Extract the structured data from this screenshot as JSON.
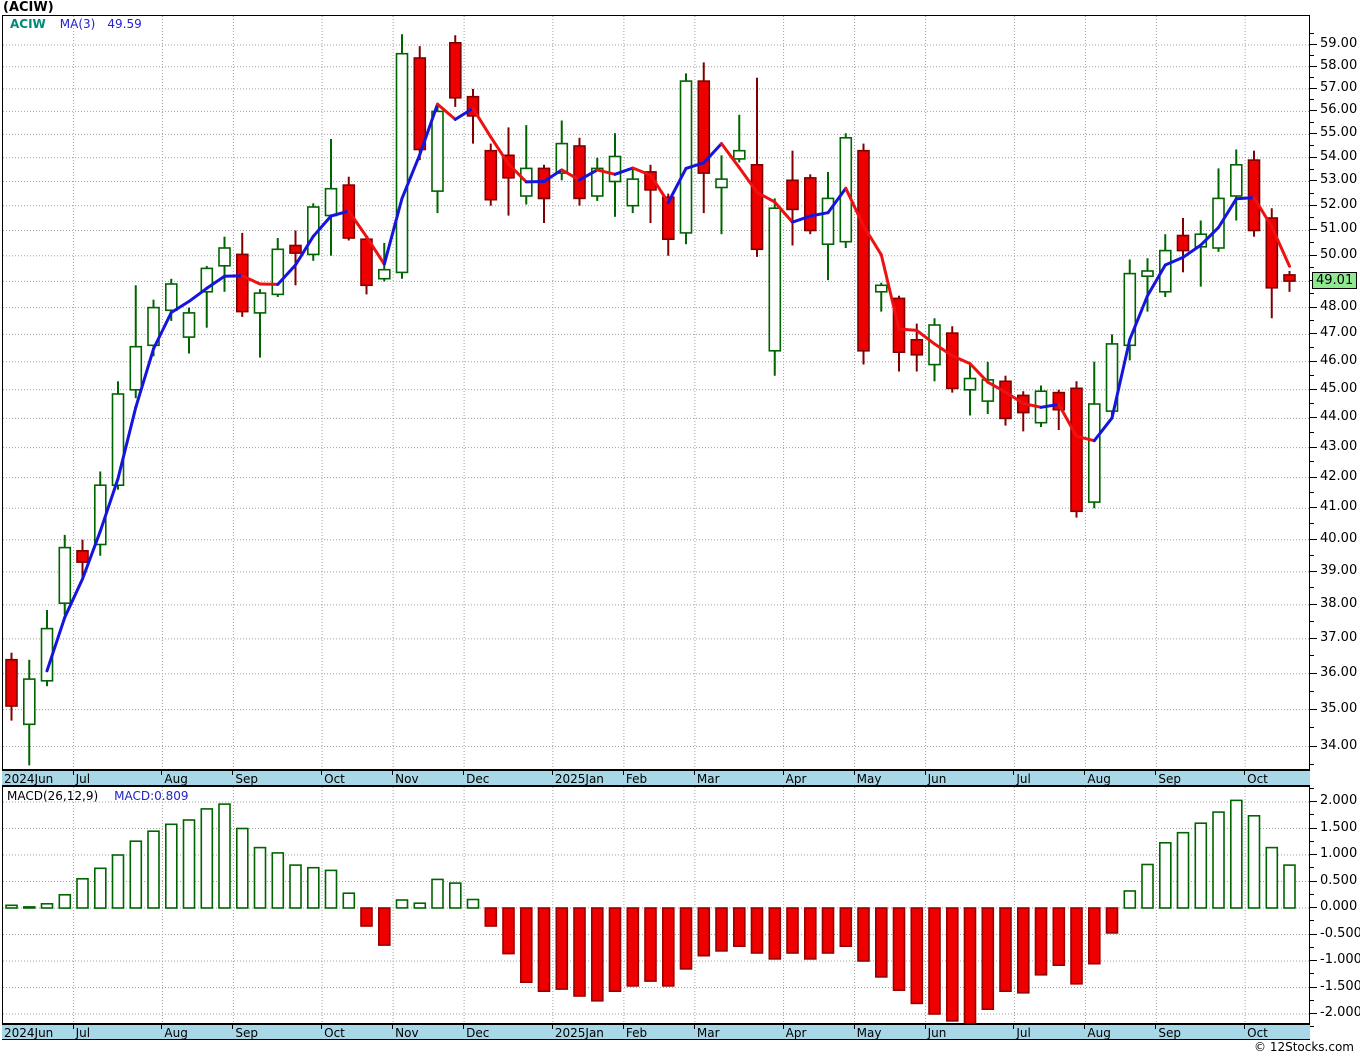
{
  "title": "(ACIW)",
  "copyright": "© 12Stocks.com",
  "price_chart": {
    "legend": {
      "symbol": "ACIW",
      "ma_label": "MA(3)",
      "ma_value": "49.59"
    },
    "last_price_label": "49.01"
  },
  "macd_chart": {
    "label": "MACD(26,12,9)",
    "value_label": "MACD:0.809"
  },
  "colors": {
    "up_fill": "#ffffff",
    "up_border": "#006400",
    "down_fill": "#ee0000",
    "down_border": "#800000",
    "ma_up": "#1515dd",
    "ma_down": "#ee1111",
    "grid": "#a0a0a0",
    "strip_bg": "#a8d8e8",
    "badge_bg": "#90e890",
    "legend_symbol": "#008878",
    "legend_blue": "#2222cc"
  },
  "chart_data": [
    {
      "type": "candlestick",
      "title": "(ACIW)",
      "series_name": "ACIW weekly OHLC",
      "overlay": {
        "name": "MA(3)",
        "last_value": 49.59,
        "rule": "blue when rising, red when falling"
      },
      "y_axis": {
        "min": 34.0,
        "max": 59.0,
        "major_step": 1.0,
        "minor_step": 0.5,
        "scale": "log",
        "side": "right",
        "label_format": "0.00"
      },
      "last_price": 49.01,
      "x_axis_months": [
        {
          "label": "2024Jun",
          "i": 0
        },
        {
          "label": "Jul",
          "i": 4
        },
        {
          "label": "Aug",
          "i": 9
        },
        {
          "label": "Sep",
          "i": 13
        },
        {
          "label": "Oct",
          "i": 18
        },
        {
          "label": "Nov",
          "i": 22
        },
        {
          "label": "Dec",
          "i": 26
        },
        {
          "label": "2025Jan",
          "i": 31
        },
        {
          "label": "Feb",
          "i": 35
        },
        {
          "label": "Mar",
          "i": 39
        },
        {
          "label": "Apr",
          "i": 44
        },
        {
          "label": "May",
          "i": 48
        },
        {
          "label": "Jun",
          "i": 52
        },
        {
          "label": "Jul",
          "i": 57
        },
        {
          "label": "Aug",
          "i": 61
        },
        {
          "label": "Sep",
          "i": 65
        },
        {
          "label": "Oct",
          "i": 70
        }
      ],
      "candles_ohlc": [
        [
          36.4,
          36.6,
          34.7,
          35.1
        ],
        [
          34.6,
          36.4,
          33.5,
          35.85
        ],
        [
          35.8,
          37.85,
          35.65,
          37.3
        ],
        [
          38.05,
          40.15,
          37.7,
          39.75
        ],
        [
          39.65,
          40.0,
          38.8,
          39.3
        ],
        [
          39.85,
          42.2,
          39.5,
          41.75
        ],
        [
          41.75,
          45.3,
          41.6,
          44.85
        ],
        [
          45.0,
          48.85,
          44.7,
          46.55
        ],
        [
          46.6,
          48.3,
          46.2,
          48.0
        ],
        [
          47.9,
          49.1,
          47.5,
          48.9
        ],
        [
          46.9,
          48.0,
          46.3,
          47.8
        ],
        [
          48.6,
          49.6,
          47.25,
          49.5
        ],
        [
          49.6,
          50.75,
          48.6,
          50.3
        ],
        [
          50.05,
          50.9,
          47.65,
          47.85
        ],
        [
          47.8,
          48.7,
          46.15,
          48.55
        ],
        [
          48.5,
          50.7,
          48.4,
          50.25
        ],
        [
          50.4,
          51.0,
          48.85,
          50.1
        ],
        [
          50.05,
          52.1,
          49.8,
          51.95
        ],
        [
          51.6,
          54.8,
          50.0,
          52.7
        ],
        [
          52.85,
          53.2,
          50.6,
          50.7
        ],
        [
          50.65,
          50.8,
          48.5,
          48.85
        ],
        [
          49.1,
          50.5,
          49.0,
          49.45
        ],
        [
          49.35,
          59.5,
          49.1,
          58.6
        ],
        [
          58.4,
          58.95,
          53.9,
          54.35
        ],
        [
          52.6,
          56.3,
          51.7,
          56.0
        ],
        [
          59.1,
          59.45,
          56.2,
          56.6
        ],
        [
          56.65,
          57.0,
          54.6,
          55.8
        ],
        [
          54.3,
          54.6,
          52.0,
          52.25
        ],
        [
          54.1,
          55.3,
          51.6,
          53.15
        ],
        [
          52.4,
          55.4,
          52.05,
          53.55
        ],
        [
          53.55,
          53.7,
          51.3,
          52.3
        ],
        [
          53.35,
          55.6,
          53.05,
          54.6
        ],
        [
          54.5,
          54.85,
          52.0,
          52.3
        ],
        [
          52.4,
          54.0,
          52.2,
          53.55
        ],
        [
          53.0,
          55.05,
          51.55,
          54.05
        ],
        [
          52.0,
          53.55,
          51.7,
          53.1
        ],
        [
          53.4,
          53.7,
          51.3,
          52.65
        ],
        [
          52.35,
          52.5,
          50.0,
          50.65
        ],
        [
          50.9,
          57.7,
          50.45,
          57.35
        ],
        [
          57.35,
          58.2,
          51.7,
          53.35
        ],
        [
          52.75,
          54.1,
          50.85,
          53.1
        ],
        [
          53.95,
          55.85,
          53.8,
          54.3
        ],
        [
          53.7,
          57.5,
          49.95,
          50.25
        ],
        [
          46.4,
          52.3,
          45.5,
          51.9
        ],
        [
          53.05,
          54.3,
          50.4,
          51.85
        ],
        [
          53.15,
          53.3,
          50.85,
          51.0
        ],
        [
          50.45,
          53.4,
          49.05,
          52.3
        ],
        [
          50.55,
          55.05,
          50.3,
          54.85
        ],
        [
          54.3,
          54.6,
          45.9,
          46.4
        ],
        [
          48.6,
          48.95,
          47.85,
          48.85
        ],
        [
          48.35,
          48.45,
          45.65,
          46.35
        ],
        [
          46.8,
          47.4,
          45.65,
          46.25
        ],
        [
          45.9,
          47.6,
          45.3,
          47.35
        ],
        [
          47.05,
          47.3,
          44.9,
          45.05
        ],
        [
          45.0,
          45.9,
          44.1,
          45.4
        ],
        [
          44.6,
          46.0,
          44.15,
          45.35
        ],
        [
          45.3,
          45.5,
          43.75,
          44.0
        ],
        [
          44.8,
          44.95,
          43.55,
          44.2
        ],
        [
          43.85,
          45.15,
          43.7,
          44.95
        ],
        [
          44.9,
          45.0,
          43.6,
          44.3
        ],
        [
          45.05,
          45.3,
          40.7,
          40.9
        ],
        [
          41.2,
          46.0,
          41.0,
          44.5
        ],
        [
          44.25,
          47.0,
          44.0,
          46.65
        ],
        [
          46.6,
          49.85,
          46.05,
          49.3
        ],
        [
          49.2,
          49.9,
          47.85,
          49.4
        ],
        [
          48.6,
          50.85,
          48.4,
          50.2
        ],
        [
          50.8,
          51.5,
          49.35,
          50.2
        ],
        [
          50.35,
          51.4,
          48.8,
          50.85
        ],
        [
          50.3,
          53.55,
          50.15,
          52.3
        ],
        [
          52.4,
          54.35,
          51.4,
          53.7
        ],
        [
          53.9,
          54.3,
          50.75,
          51.0
        ],
        [
          51.5,
          51.9,
          47.6,
          48.75
        ],
        [
          49.25,
          49.4,
          48.6,
          49.01
        ]
      ]
    },
    {
      "type": "bar",
      "title": "MACD(26,12,9) histogram",
      "y_axis": {
        "min": -2.0,
        "max": 2.0,
        "major_step": 0.5,
        "minor_step": 0.25,
        "side": "right",
        "label_format": "0.000"
      },
      "last_value": 0.809,
      "values": [
        0.05,
        0.02,
        0.08,
        0.25,
        0.55,
        0.75,
        1.0,
        1.26,
        1.45,
        1.58,
        1.66,
        1.87,
        1.96,
        1.5,
        1.14,
        1.04,
        0.81,
        0.76,
        0.71,
        0.28,
        -0.34,
        -0.7,
        0.15,
        0.09,
        0.54,
        0.47,
        0.16,
        -0.34,
        -0.86,
        -1.4,
        -1.57,
        -1.53,
        -1.66,
        -1.75,
        -1.57,
        -1.47,
        -1.38,
        -1.47,
        -1.15,
        -0.9,
        -0.81,
        -0.72,
        -0.85,
        -0.96,
        -0.85,
        -0.96,
        -0.85,
        -0.72,
        -1.0,
        -1.3,
        -1.55,
        -1.8,
        -2.0,
        -2.13,
        -2.19,
        -1.91,
        -1.57,
        -1.6,
        -1.26,
        -1.08,
        -1.43,
        -1.05,
        -0.47,
        0.32,
        0.82,
        1.23,
        1.42,
        1.6,
        1.81,
        2.03,
        1.74,
        1.14,
        0.81
      ]
    }
  ]
}
